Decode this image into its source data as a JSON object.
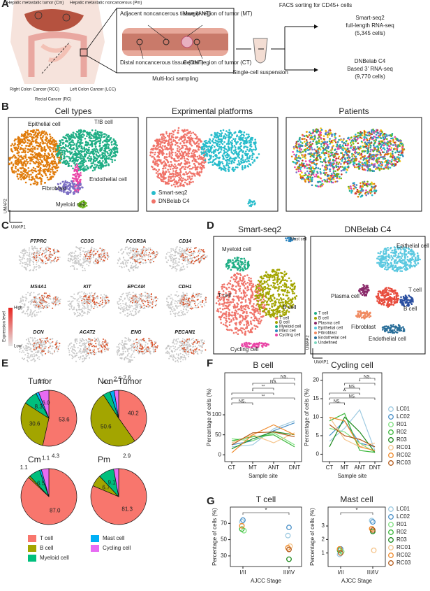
{
  "panel_labels": [
    "A",
    "B",
    "C",
    "D",
    "E",
    "F",
    "G"
  ],
  "panel_a": {
    "organs": [
      "Hepatic metastatic tumor (Cm)",
      "Hepatic metastatic noncancerous (Pm)",
      "Right Colon Cancer (RCC)",
      "Left Colon Cancer (LCC)",
      "Rectal Cancer (RC)"
    ],
    "regions": [
      "Adjacent noncancerous tissue (ANT)",
      "Margin region of tumor (MT)",
      "Distal noncancerous tissue (DNT)",
      "Center region of tumor (CT)"
    ],
    "sampling": "Multi-loci sampling",
    "suspension": "Single-cell suspension",
    "facs": "FACS sorting for CD45+ cells",
    "smart": [
      "Smart-seq2",
      "full-length RNA-seq",
      "(5,345 cells)"
    ],
    "dnb": [
      "DNBelab C4",
      "Based 3' RNA-seq",
      "(9,770 cells)"
    ]
  },
  "panel_b": {
    "titles": [
      "Cell types",
      "Exprimental platforms",
      "Patients"
    ],
    "cell_labels": [
      "Epithelial cell",
      "T/B cell",
      "Endothelial cell",
      "Fibroblast",
      "Myeloid cell"
    ],
    "platforms": [
      "Smart-seq2",
      "DNBelab C4"
    ],
    "umap1": "UMAP1",
    "umap2": "UMAP2"
  },
  "panel_c": {
    "genes": [
      "PTPRC",
      "CD3G",
      "FCGR3A",
      "CD14",
      "MS4A1",
      "KIT",
      "EPCAM",
      "CDH1",
      "DCN",
      "ACAT2",
      "ENG",
      "PECAM1"
    ],
    "high": "High",
    "low": "Low",
    "legend_title": "Expression level"
  },
  "panel_d": {
    "titles": [
      "Smart-seq2",
      "DNBelab C4"
    ],
    "smart_labels": [
      "Myeloid cell",
      "Mast cell",
      "B cell",
      "T cell",
      "Cycling cell"
    ],
    "smart_legend": [
      "T cell",
      "B cell",
      "Myeloid cell",
      "Mast cell",
      "Cycling cell"
    ],
    "dnb_labels": [
      "Epithelial cell",
      "Plasma cell",
      "T cell",
      "B cell",
      "Fibroblast",
      "Endothelial cell"
    ],
    "dnb_legend": [
      "T cell",
      "B cell",
      "Plasma cell",
      "Epithelial cell",
      "Fibroblast",
      "Endothelial cell",
      "Undefined"
    ],
    "umap1": "UMAP1",
    "umap2": "UMAP2"
  },
  "chart_data": [
    {
      "type": "pie",
      "title": "Tumor",
      "categories": [
        "T cell",
        "B cell",
        "Myeloid cell",
        "Mast cell",
        "Cycling cell"
      ],
      "colors": [
        "#F8766D",
        "#A3A500",
        "#00BF7D",
        "#00B0F6",
        "#E76BF3"
      ],
      "values": [
        53.6,
        30.6,
        8.3,
        1.6,
        6.0
      ],
      "value_labels": [
        "53.6",
        "30.6",
        "8.3",
        "1.6",
        "6.0"
      ]
    },
    {
      "type": "pie",
      "title": "Non−Tumor",
      "categories": [
        "T cell",
        "B cell",
        "Myeloid cell",
        "Mast cell",
        "Cycling cell"
      ],
      "colors": [
        "#F8766D",
        "#A3A500",
        "#00BF7D",
        "#00B0F6",
        "#E76BF3"
      ],
      "values": [
        40.2,
        50.6,
        4.1,
        2.5,
        2.6
      ],
      "value_labels": [
        "40.2",
        "50.6",
        "4.1",
        "2.5",
        "2.6"
      ]
    },
    {
      "type": "pie",
      "title": "Cm",
      "categories": [
        "T cell",
        "B cell",
        "Myeloid cell",
        "Mast cell",
        "Cycling cell"
      ],
      "colors": [
        "#F8766D",
        "#A3A500",
        "#00BF7D",
        "#00B0F6",
        "#E76BF3"
      ],
      "values": [
        87.0,
        1.1,
        6.5,
        1.1,
        4.3
      ],
      "value_labels": [
        "87.0",
        "1.1",
        "6.5",
        "1.1",
        "4.3"
      ]
    },
    {
      "type": "pie",
      "title": "Pm",
      "categories": [
        "T cell",
        "B cell",
        "Myeloid cell",
        "Mast cell",
        "Cycling cell"
      ],
      "colors": [
        "#F8766D",
        "#A3A500",
        "#00BF7D",
        "#00B0F6",
        "#E76BF3"
      ],
      "values": [
        81.3,
        6.7,
        9.1,
        null,
        2.9
      ],
      "value_labels": [
        "81.3",
        "6.7",
        "9.1",
        null,
        "2.9"
      ]
    },
    {
      "type": "line",
      "title": "B cell",
      "categories": [
        "CT",
        "MT",
        "ANT",
        "DNT"
      ],
      "xlabel": "Sample site",
      "ylabel": "Percentage of cells (%)",
      "ylim": [
        -17,
        205
      ],
      "yticks": [
        0,
        50,
        100
      ],
      "annotations": [
        "NS.",
        "NS.",
        "**",
        "*",
        "**",
        "NS."
      ],
      "series": [
        {
          "name": "LC01",
          "color": "#9ecae1",
          "values": [
            20,
            25,
            65,
            85
          ]
        },
        {
          "name": "LC02",
          "color": "#4a90c8",
          "values": [
            25,
            35,
            60,
            80
          ]
        },
        {
          "name": "R01",
          "color": "#7fe07f",
          "values": [
            40,
            35,
            55,
            25
          ]
        },
        {
          "name": "R02",
          "color": "#3cb83c",
          "values": [
            35,
            45,
            50,
            20
          ]
        },
        {
          "name": "R03",
          "color": "#1e8a1e",
          "values": [
            15,
            40,
            58,
            50
          ]
        },
        {
          "name": "RC01",
          "color": "#f5c48a",
          "values": [
            30,
            50,
            30,
            55
          ]
        },
        {
          "name": "RC02",
          "color": "#f08a2a",
          "values": [
            5,
            50,
            75,
            50
          ]
        },
        {
          "name": "RC03",
          "color": "#b35a1a",
          "values": [
            25,
            55,
            57,
            45
          ]
        }
      ]
    },
    {
      "type": "line",
      "title": "Cycling cell",
      "categories": [
        "CT",
        "MT",
        "ANT",
        "DNT"
      ],
      "xlabel": "Sample site",
      "ylabel": "Percentage of cells (%)",
      "ylim": [
        -2,
        22
      ],
      "yticks": [
        0,
        5,
        10,
        15,
        20
      ],
      "annotations": [
        "NS.",
        "*",
        "NS.",
        "**",
        "NS.",
        "NS."
      ],
      "series": [
        {
          "name": "LC01",
          "color": "#9ecae1",
          "values": [
            3.5,
            7,
            12,
            1
          ]
        },
        {
          "name": "LC02",
          "color": "#4a90c8",
          "values": [
            5,
            9,
            3,
            2
          ]
        },
        {
          "name": "R01",
          "color": "#7fe07f",
          "values": [
            7,
            6,
            3,
            0.5
          ]
        },
        {
          "name": "R02",
          "color": "#3cb83c",
          "values": [
            9,
            11,
            1,
            0.5
          ]
        },
        {
          "name": "R03",
          "color": "#1e8a1e",
          "values": [
            2,
            10,
            6,
            0.5
          ]
        },
        {
          "name": "RC01",
          "color": "#f5c48a",
          "values": [
            10,
            4,
            2,
            3
          ]
        },
        {
          "name": "RC02",
          "color": "#f08a2a",
          "values": [
            10,
            9,
            2,
            1
          ]
        },
        {
          "name": "RC03",
          "color": "#b35a1a",
          "values": [
            8,
            5,
            4,
            2
          ]
        }
      ]
    },
    {
      "type": "scatter",
      "title": "T cell",
      "categories": [
        "I/II",
        "III/IV"
      ],
      "xlabel": "AJCC Stage",
      "ylabel": "Percentage of cells (%)",
      "ylim": [
        17,
        90
      ],
      "yticks": [
        30,
        50,
        70
      ],
      "annotations": [
        "*"
      ],
      "series": [
        {
          "name": "LC01",
          "color": "#9ecae1",
          "values": [
            72,
            55
          ]
        },
        {
          "name": "LC02",
          "color": "#4a90c8",
          "values": [
            74,
            65
          ]
        },
        {
          "name": "R01",
          "color": "#7fe07f",
          "values": [
            61,
            null
          ]
        },
        {
          "name": "R02",
          "color": "#3cb83c",
          "values": [
            63,
            null
          ]
        },
        {
          "name": "R03",
          "color": "#1e8a1e",
          "values": [
            null,
            26
          ]
        },
        {
          "name": "RC01",
          "color": "#f5c48a",
          "values": [
            null,
            42
          ]
        },
        {
          "name": "RC02",
          "color": "#f08a2a",
          "values": [
            67,
            40
          ]
        },
        {
          "name": "RC03",
          "color": "#b35a1a",
          "values": [
            null,
            38
          ]
        }
      ]
    },
    {
      "type": "scatter",
      "title": "Mast cell",
      "categories": [
        "I/II",
        "III/IV"
      ],
      "xlabel": "AJCC Stage",
      "ylabel": "Percentage of cells (%)",
      "ylim": [
        0,
        4.4
      ],
      "yticks": [
        1,
        2,
        3
      ],
      "annotations": [
        "*"
      ],
      "series": [
        {
          "name": "LC01",
          "color": "#9ecae1",
          "values": [
            0.9,
            3.4
          ]
        },
        {
          "name": "LC02",
          "color": "#4a90c8",
          "values": [
            1.3,
            3.3
          ]
        },
        {
          "name": "R01",
          "color": "#7fe07f",
          "values": [
            1.1,
            null
          ]
        },
        {
          "name": "R02",
          "color": "#3cb83c",
          "values": [
            1.2,
            null
          ]
        },
        {
          "name": "R03",
          "color": "#1e8a1e",
          "values": [
            null,
            2.6
          ]
        },
        {
          "name": "RC01",
          "color": "#f5c48a",
          "values": [
            null,
            1.2
          ]
        },
        {
          "name": "RC02",
          "color": "#f08a2a",
          "values": [
            1.3,
            2.8
          ]
        },
        {
          "name": "RC03",
          "color": "#b35a1a",
          "values": [
            1.0,
            2.7
          ]
        }
      ]
    }
  ]
}
